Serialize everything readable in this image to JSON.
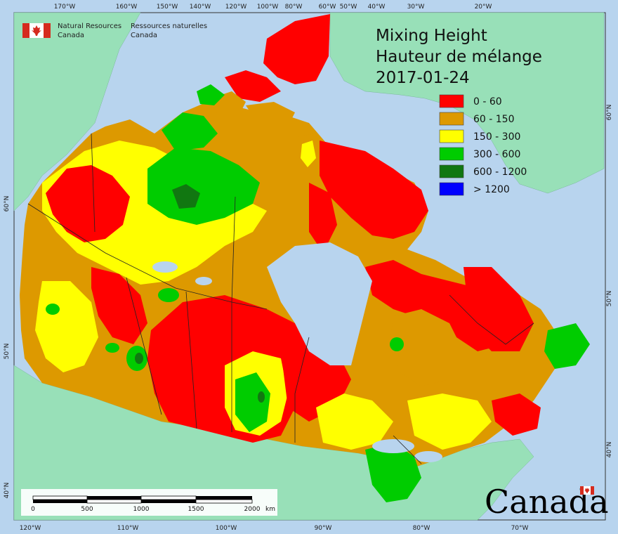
{
  "title": {
    "line1": "Mixing Height",
    "line2": "Hauteur de mélange",
    "date": "2017-01-24"
  },
  "agency": {
    "en1": "Natural Resources",
    "en2": "Canada",
    "fr1": "Ressources naturelles",
    "fr2": "Canada"
  },
  "wordmark": "Canada",
  "legend": [
    {
      "label": "0 - 60",
      "color": "#ff0000"
    },
    {
      "label": "60 - 150",
      "color": "#dd9900"
    },
    {
      "label": "150 - 300",
      "color": "#ffff00"
    },
    {
      "label": "300 - 600",
      "color": "#00cc00"
    },
    {
      "label": "600 - 1200",
      "color": "#117711"
    },
    {
      "label": "> 1200",
      "color": "#0000ff"
    }
  ],
  "colors": {
    "water": "#b8d4ee",
    "foreign_land": "#98e0b8",
    "ice_land": "#98e0b8"
  },
  "top_ticks": [
    "170°W",
    "160°W",
    "150°W",
    "140°W",
    "120°W",
    "100°W",
    "80°W",
    "60°W",
    "50°W",
    "40°W",
    "30°W",
    "20°W"
  ],
  "bottom_ticks": [
    "120°W",
    "110°W",
    "100°W",
    "90°W",
    "80°W",
    "70°W"
  ],
  "left_ticks": [
    "60°N",
    "50°N",
    "40°N"
  ],
  "right_ticks": [
    "60°N",
    "50°N",
    "40°N"
  ],
  "scale_bar": {
    "labels": [
      "0",
      "500",
      "1000",
      "1500",
      "2000"
    ],
    "unit": "km"
  }
}
